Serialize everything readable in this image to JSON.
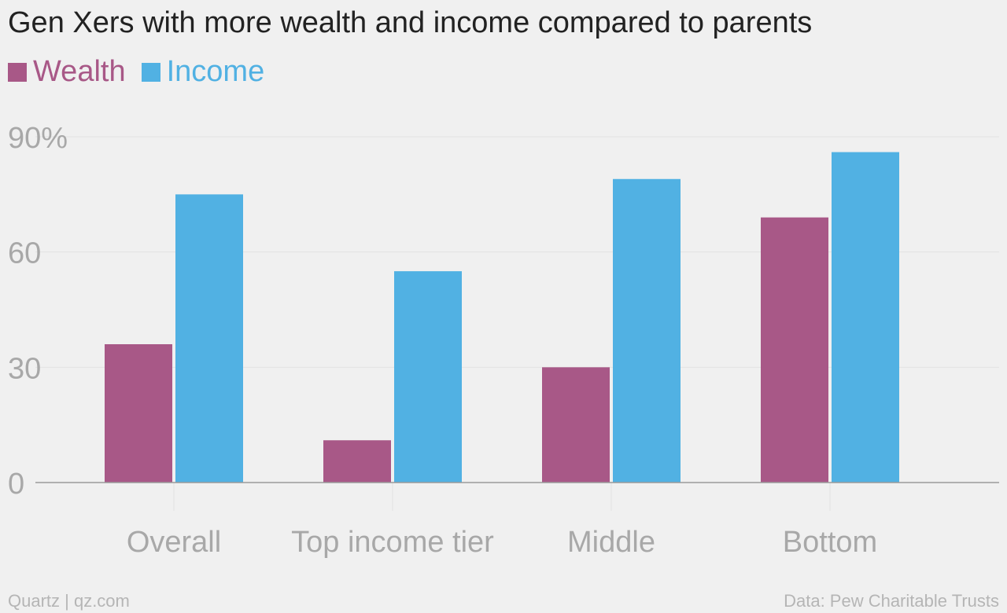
{
  "chart_data": {
    "type": "bar",
    "title": "Gen Xers with more wealth and income compared to parents",
    "categories": [
      "Overall",
      "Top income tier",
      "Middle",
      "Bottom"
    ],
    "series": [
      {
        "name": "Wealth",
        "color": "#a85887",
        "values": [
          36,
          11,
          30,
          69
        ]
      },
      {
        "name": "Income",
        "color": "#51b1e3",
        "values": [
          75,
          55,
          79,
          86
        ]
      }
    ],
    "ylim": [
      0,
      90
    ],
    "yticks": [
      0,
      30,
      60,
      90
    ],
    "ytick_labels": [
      "0",
      "30",
      "60",
      "90%"
    ],
    "xlabel": "",
    "ylabel": "",
    "grid": true,
    "legend_position": "top-left"
  },
  "footer": {
    "source_left": "Quartz | qz.com",
    "source_right": "Data: Pew Charitable Trusts"
  }
}
